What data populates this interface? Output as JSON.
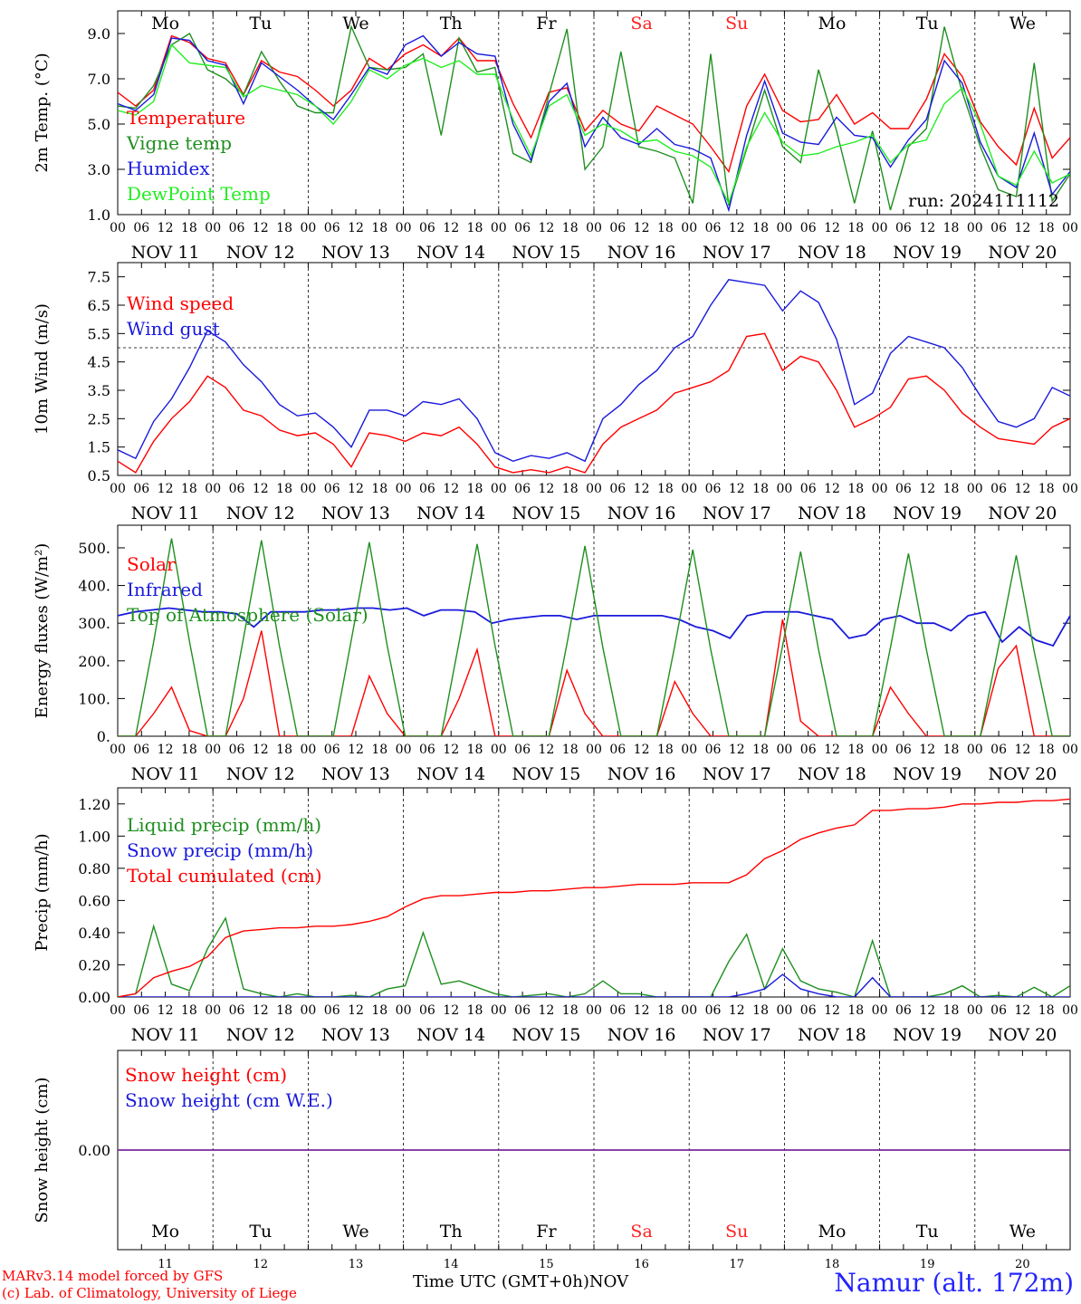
{
  "colors": {
    "red": "#ff0000",
    "green": "#1f8f1f",
    "blue": "#1a1adc",
    "lightgreen": "#22ee22",
    "purple": "#7a2a9a",
    "weekend": "#ff2222",
    "station": "#2424ff"
  },
  "footer": {
    "credit_model": "MARv3.14 model forced by GFS",
    "credit_lab": "(c) Lab. of Climatology, University of Liege",
    "xaxis_title": "Time UTC (GMT+0h)",
    "month": "NOV",
    "station": "Namur (alt. 172m)"
  },
  "chart_data": [
    {
      "type": "line",
      "panel": "temperature",
      "ylabel": "2m Temp. (°C)",
      "ylim": [
        1.0,
        10.0
      ],
      "yticks": [
        "1.0",
        "3.0",
        "5.0",
        "7.0",
        "9.0"
      ],
      "run_label": "run: 2024111112",
      "weekdays": [
        "Mo",
        "Tu",
        "We",
        "Th",
        "Fr",
        "Sa",
        "Su",
        "Mo",
        "Tu",
        "We"
      ],
      "date_labels": [
        "NOV 11",
        "NOV 12",
        "NOV 13",
        "NOV 14",
        "NOV 15",
        "NOV 16",
        "NOV 17",
        "NOV 18",
        "NOV 19",
        "NOV 20"
      ],
      "hour_ticks": [
        "00",
        "06",
        "12",
        "18"
      ],
      "x_hours_start": 0,
      "x_hours_step": 6,
      "series": [
        {
          "name": "Temperature",
          "color": "red",
          "values": [
            6.4,
            5.8,
            6.5,
            8.9,
            8.6,
            7.9,
            7.7,
            6.3,
            7.8,
            7.3,
            7.1,
            6.5,
            5.8,
            6.5,
            7.9,
            7.4,
            8.1,
            8.5,
            8.0,
            8.8,
            7.8,
            7.8,
            5.9,
            4.4,
            6.4,
            6.6,
            4.7,
            5.6,
            5.0,
            4.7,
            5.8,
            5.4,
            5.0,
            4.0,
            2.9,
            5.8,
            7.2,
            5.6,
            5.1,
            5.2,
            6.3,
            5.0,
            5.5,
            4.8,
            4.8,
            6.1,
            8.1,
            7.1,
            5.1,
            4.0,
            3.2,
            5.7,
            3.5,
            4.4
          ]
        },
        {
          "name": "Vigne temp",
          "color": "green",
          "values": [
            5.8,
            5.7,
            6.7,
            8.5,
            9.0,
            7.4,
            7.0,
            6.3,
            8.2,
            6.9,
            5.8,
            5.5,
            5.5,
            9.3,
            7.5,
            7.4,
            7.5,
            8.1,
            4.5,
            8.8,
            7.3,
            7.5,
            3.7,
            3.3,
            6.3,
            9.2,
            3.0,
            4.0,
            8.2,
            4.0,
            3.8,
            3.5,
            1.5,
            8.1,
            1.4,
            3.9,
            6.5,
            4.0,
            3.3,
            7.4,
            4.7,
            1.5,
            4.7,
            1.2,
            4.0,
            4.8,
            9.3,
            6.4,
            4.0,
            2.1,
            1.8,
            7.7,
            1.6,
            2.8
          ]
        },
        {
          "name": "Humidex",
          "color": "blue",
          "values": [
            5.9,
            5.6,
            6.3,
            8.8,
            8.7,
            7.8,
            7.6,
            5.9,
            7.7,
            7.1,
            6.5,
            5.8,
            5.2,
            6.3,
            7.5,
            7.2,
            8.5,
            8.9,
            8.0,
            8.6,
            8.1,
            8.0,
            5.0,
            3.4,
            6.0,
            6.8,
            4.0,
            5.3,
            4.4,
            4.1,
            4.8,
            4.1,
            3.9,
            3.5,
            1.2,
            4.5,
            6.9,
            4.6,
            4.2,
            4.1,
            5.3,
            4.5,
            4.4,
            3.1,
            4.3,
            5.2,
            7.8,
            6.8,
            4.2,
            2.7,
            2.2,
            4.6,
            1.9,
            2.9
          ]
        },
        {
          "name": "DewPoint Temp",
          "color": "lightgreen",
          "values": [
            5.6,
            5.4,
            6.0,
            8.5,
            7.7,
            7.6,
            7.5,
            6.2,
            6.7,
            6.5,
            6.3,
            5.8,
            5.0,
            6.0,
            7.4,
            7.0,
            7.6,
            7.9,
            7.5,
            7.8,
            7.2,
            7.2,
            5.2,
            3.6,
            5.8,
            6.3,
            4.5,
            5.0,
            4.7,
            4.2,
            4.3,
            3.8,
            3.6,
            3.1,
            1.5,
            4.0,
            5.5,
            4.2,
            3.6,
            3.7,
            4.0,
            4.2,
            4.5,
            3.3,
            4.1,
            4.3,
            5.9,
            6.6,
            5.0,
            2.7,
            2.3,
            3.8,
            2.4,
            2.8
          ]
        }
      ]
    },
    {
      "type": "line",
      "panel": "wind",
      "ylabel": "10m Wind (m/s)",
      "ylim": [
        0.5,
        8.0
      ],
      "yticks": [
        "0.5",
        "1.5",
        "2.5",
        "3.5",
        "4.5",
        "5.5",
        "6.5",
        "7.5"
      ],
      "reference_line": 5.0,
      "date_labels": [
        "NOV 11",
        "NOV 12",
        "NOV 13",
        "NOV 14",
        "NOV 15",
        "NOV 16",
        "NOV 17",
        "NOV 18",
        "NOV 19",
        "NOV 20"
      ],
      "hour_ticks": [
        "00",
        "06",
        "12",
        "18"
      ],
      "x_hours_start": 0,
      "x_hours_step": 6,
      "series": [
        {
          "name": "Wind speed",
          "color": "red",
          "values": [
            1.0,
            0.6,
            1.7,
            2.5,
            3.1,
            4.0,
            3.6,
            2.8,
            2.6,
            2.1,
            1.9,
            2.0,
            1.6,
            0.8,
            2.0,
            1.9,
            1.7,
            2.0,
            1.9,
            2.2,
            1.6,
            0.8,
            0.6,
            0.7,
            0.6,
            0.8,
            0.6,
            1.6,
            2.2,
            2.5,
            2.8,
            3.4,
            3.6,
            3.8,
            4.2,
            5.4,
            5.5,
            4.2,
            4.7,
            4.5,
            3.5,
            2.2,
            2.5,
            2.9,
            3.9,
            4.0,
            3.5,
            2.7,
            2.2,
            1.8,
            1.7,
            1.6,
            2.2,
            2.5
          ]
        },
        {
          "name": "Wind gust",
          "color": "blue",
          "values": [
            1.4,
            1.1,
            2.4,
            3.2,
            4.3,
            5.6,
            5.2,
            4.4,
            3.8,
            3.0,
            2.6,
            2.7,
            2.2,
            1.5,
            2.8,
            2.8,
            2.6,
            3.1,
            3.0,
            3.2,
            2.5,
            1.3,
            1.0,
            1.2,
            1.1,
            1.3,
            1.0,
            2.5,
            3.0,
            3.7,
            4.2,
            5.0,
            5.4,
            6.5,
            7.4,
            7.3,
            7.2,
            6.3,
            7.0,
            6.6,
            5.3,
            3.0,
            3.4,
            4.8,
            5.4,
            5.2,
            5.0,
            4.3,
            3.3,
            2.4,
            2.2,
            2.5,
            3.6,
            3.3
          ]
        }
      ]
    },
    {
      "type": "line",
      "panel": "energy",
      "ylabel": "Energy fluxes (W/m²)",
      "ylim": [
        0,
        560
      ],
      "yticks": [
        "0.",
        "100.",
        "200.",
        "300.",
        "400.",
        "500."
      ],
      "date_labels": [
        "NOV 11",
        "NOV 12",
        "NOV 13",
        "NOV 14",
        "NOV 15",
        "NOV 16",
        "NOV 17",
        "NOV 18",
        "NOV 19",
        "NOV 20"
      ],
      "hour_ticks": [
        "00",
        "06",
        "12",
        "18"
      ],
      "x_hours_start": 0,
      "x_hours_step": 6,
      "series": [
        {
          "name": "Solar",
          "color": "red",
          "values": [
            0,
            0,
            60,
            130,
            15,
            0,
            0,
            100,
            280,
            0,
            0,
            0,
            0,
            0,
            160,
            60,
            0,
            0,
            0,
            100,
            230,
            0,
            0,
            0,
            0,
            175,
            60,
            0,
            0,
            0,
            0,
            145,
            60,
            0,
            0,
            0,
            0,
            310,
            40,
            0,
            0,
            0,
            0,
            130,
            60,
            0,
            0,
            0,
            0,
            180,
            240,
            0,
            0,
            0
          ]
        },
        {
          "name": "Infrared",
          "color": "blue",
          "values": [
            320,
            330,
            335,
            340,
            335,
            330,
            330,
            325,
            290,
            330,
            330,
            330,
            335,
            335,
            340,
            340,
            335,
            340,
            320,
            335,
            335,
            330,
            300,
            310,
            315,
            320,
            320,
            310,
            320,
            320,
            320,
            320,
            320,
            310,
            290,
            280,
            260,
            320,
            330,
            330,
            330,
            320,
            310,
            260,
            270,
            310,
            320,
            300,
            300,
            280,
            320,
            330,
            250,
            290,
            255,
            240,
            320
          ]
        },
        {
          "name": "Top of Atmosphere (Solar)",
          "color": "green",
          "values": [
            0,
            0,
            250,
            525,
            250,
            0,
            0,
            260,
            520,
            240,
            0,
            0,
            0,
            255,
            515,
            240,
            0,
            0,
            0,
            250,
            510,
            240,
            0,
            0,
            0,
            245,
            505,
            235,
            0,
            0,
            0,
            240,
            495,
            230,
            0,
            0,
            0,
            240,
            490,
            230,
            0,
            0,
            0,
            235,
            485,
            230,
            0,
            0,
            0,
            235,
            480,
            225,
            0,
            0
          ]
        }
      ]
    },
    {
      "type": "line",
      "panel": "precip",
      "ylabel": "Precip (mm/h)",
      "ylim": [
        0.0,
        1.3
      ],
      "yticks": [
        "0.00",
        "0.20",
        "0.40",
        "0.60",
        "0.80",
        "1.00",
        "1.20"
      ],
      "date_labels": [
        "NOV 11",
        "NOV 12",
        "NOV 13",
        "NOV 14",
        "NOV 15",
        "NOV 16",
        "NOV 17",
        "NOV 18",
        "NOV 19",
        "NOV 20"
      ],
      "hour_ticks": [
        "00",
        "06",
        "12",
        "18"
      ],
      "x_hours_start": 0,
      "x_hours_step": 6,
      "series": [
        {
          "name": "Liquid precip (mm/h)",
          "color": "green",
          "values": [
            0.0,
            0.02,
            0.44,
            0.08,
            0.04,
            0.3,
            0.49,
            0.05,
            0.02,
            0.0,
            0.02,
            0.0,
            0.0,
            0.01,
            0.0,
            0.05,
            0.07,
            0.4,
            0.08,
            0.1,
            0.06,
            0.02,
            0.0,
            0.01,
            0.02,
            0.0,
            0.02,
            0.1,
            0.02,
            0.02,
            0.0,
            0.0,
            0.0,
            0.0,
            0.22,
            0.39,
            0.05,
            0.3,
            0.1,
            0.05,
            0.03,
            0.0,
            0.35,
            0.0,
            0.0,
            0.0,
            0.02,
            0.07,
            0.0,
            0.01,
            0.0,
            0.06,
            0.0,
            0.07
          ]
        },
        {
          "name": "Snow precip (mm/h)",
          "color": "blue",
          "values": [
            0.0,
            0.0,
            0.0,
            0.0,
            0.0,
            0.0,
            0.0,
            0.0,
            0.0,
            0.0,
            0.0,
            0.0,
            0.0,
            0.0,
            0.0,
            0.0,
            0.0,
            0.0,
            0.0,
            0.0,
            0.0,
            0.0,
            0.0,
            0.0,
            0.0,
            0.0,
            0.0,
            0.0,
            0.0,
            0.0,
            0.0,
            0.0,
            0.0,
            0.0,
            0.0,
            0.02,
            0.05,
            0.14,
            0.05,
            0.02,
            0.0,
            0.0,
            0.12,
            0.0,
            0.0,
            0.0,
            0.0,
            0.0,
            0.0,
            0.0,
            0.0,
            0.0,
            0.0,
            0.0
          ]
        },
        {
          "name": "Total cumulated (cm)",
          "color": "red",
          "values": [
            0.0,
            0.02,
            0.12,
            0.16,
            0.19,
            0.25,
            0.37,
            0.41,
            0.42,
            0.43,
            0.43,
            0.44,
            0.44,
            0.45,
            0.47,
            0.5,
            0.56,
            0.61,
            0.63,
            0.63,
            0.64,
            0.65,
            0.65,
            0.66,
            0.66,
            0.67,
            0.68,
            0.68,
            0.69,
            0.7,
            0.7,
            0.7,
            0.71,
            0.71,
            0.71,
            0.76,
            0.86,
            0.91,
            0.98,
            1.02,
            1.05,
            1.07,
            1.16,
            1.16,
            1.17,
            1.17,
            1.18,
            1.2,
            1.2,
            1.21,
            1.21,
            1.22,
            1.22,
            1.23
          ]
        }
      ]
    },
    {
      "type": "line",
      "panel": "snow",
      "ylabel": "Snow height (cm)",
      "ylim": [
        -1.0,
        1.0
      ],
      "yticks": [
        "0.00"
      ],
      "weekdays": [
        "Mo",
        "Tu",
        "We",
        "Th",
        "Fr",
        "Sa",
        "Su",
        "Mo",
        "Tu",
        "We"
      ],
      "day_numbers": [
        "11",
        "12",
        "13",
        "14",
        "15",
        "16",
        "17",
        "18",
        "19",
        "20"
      ],
      "series": [
        {
          "name": "Snow height (cm)",
          "color": "red",
          "values": [
            0,
            0
          ]
        },
        {
          "name": "Snow height (cm W.E.)",
          "color": "blue",
          "values": [
            0,
            0
          ]
        }
      ]
    }
  ]
}
